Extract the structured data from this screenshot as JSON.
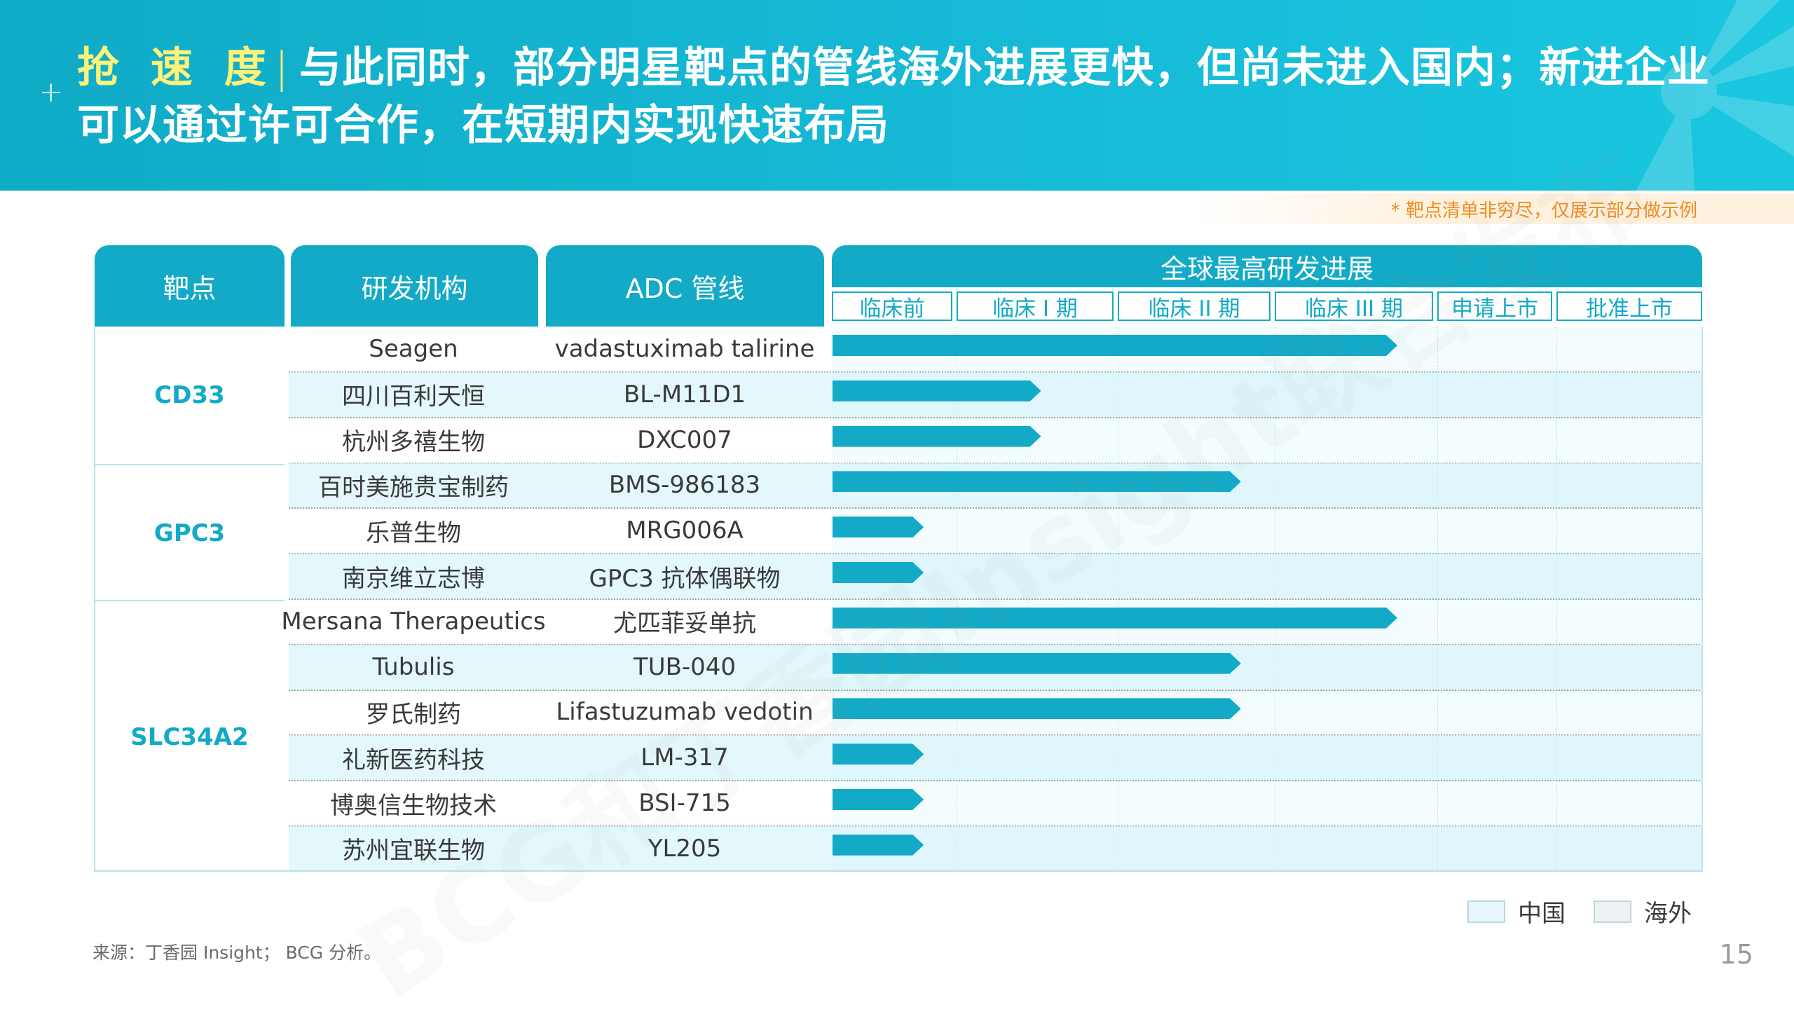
{
  "header": {
    "keyword": "抢 速 度",
    "separator": "|",
    "title_line1": "与此同时，部分明星靶点的管线海外进展更快，但尚未进入国内；新进企业",
    "title_line2": "可以通过许可合作，在短期内实现快速布局"
  },
  "note": "* 靶点清单非穷尽，仅展示部分做示例",
  "table": {
    "headers": {
      "target": "靶点",
      "org": "研发机构",
      "pipeline": "ADC 管线",
      "progress": "全球最高研发进展"
    },
    "stages": [
      "临床前",
      "临床 I 期",
      "临床 II 期",
      "临床 III 期",
      "申请上市",
      "批准上市"
    ],
    "groups": [
      {
        "target": "CD33",
        "rows": 3
      },
      {
        "target": "GPC3",
        "rows": 3
      },
      {
        "target": "SLC34A2",
        "rows": 6
      }
    ],
    "rows": [
      {
        "org": "Seagen",
        "pipeline": "vadastuximab talirine",
        "stage_reached": "临床 III 期",
        "progress": 0.65
      },
      {
        "org": "四川百利天恒",
        "pipeline": "BL-M11D1",
        "stage_reached": "临床 I 期",
        "progress": 0.24
      },
      {
        "org": "杭州多禧生物",
        "pipeline": "DXC007",
        "stage_reached": "临床 I 期",
        "progress": 0.24
      },
      {
        "org": "百时美施贵宝制药",
        "pipeline": "BMS-986183",
        "stage_reached": "临床 II 期",
        "progress": 0.47
      },
      {
        "org": "乐普生物",
        "pipeline": "MRG006A",
        "stage_reached": "临床前",
        "progress": 0.105
      },
      {
        "org": "南京维立志博",
        "pipeline": "GPC3 抗体偶联物",
        "stage_reached": "临床前",
        "progress": 0.105
      },
      {
        "org": "Mersana Therapeutics",
        "pipeline": "尤匹菲妥单抗",
        "stage_reached": "临床 III 期",
        "progress": 0.65
      },
      {
        "org": "Tubulis",
        "pipeline": "TUB-040",
        "stage_reached": "临床 II 期",
        "progress": 0.47
      },
      {
        "org": "罗氏制药",
        "pipeline": "Lifastuzumab vedotin",
        "stage_reached": "临床 II 期",
        "progress": 0.47
      },
      {
        "org": "礼新医药科技",
        "pipeline": "LM-317",
        "stage_reached": "临床前",
        "progress": 0.105
      },
      {
        "org": "博奥信生物技术",
        "pipeline": "BSI-715",
        "stage_reached": "临床前",
        "progress": 0.105
      },
      {
        "org": "苏州宜联生物",
        "pipeline": "YL205",
        "stage_reached": "临床前",
        "progress": 0.105
      }
    ]
  },
  "legend": {
    "china": {
      "label": "中国",
      "color": "#e6f8fc"
    },
    "overseas": {
      "label": "海外",
      "color": "#eef0f1"
    }
  },
  "watermark": "BCG和丁香园Insight联合发布",
  "source": "来源：丁香园 Insight； BCG 分析。",
  "page_number": "15",
  "colors": {
    "accent": "#12aac6",
    "highlight": "#fff27a",
    "note": "#f08c1e"
  }
}
